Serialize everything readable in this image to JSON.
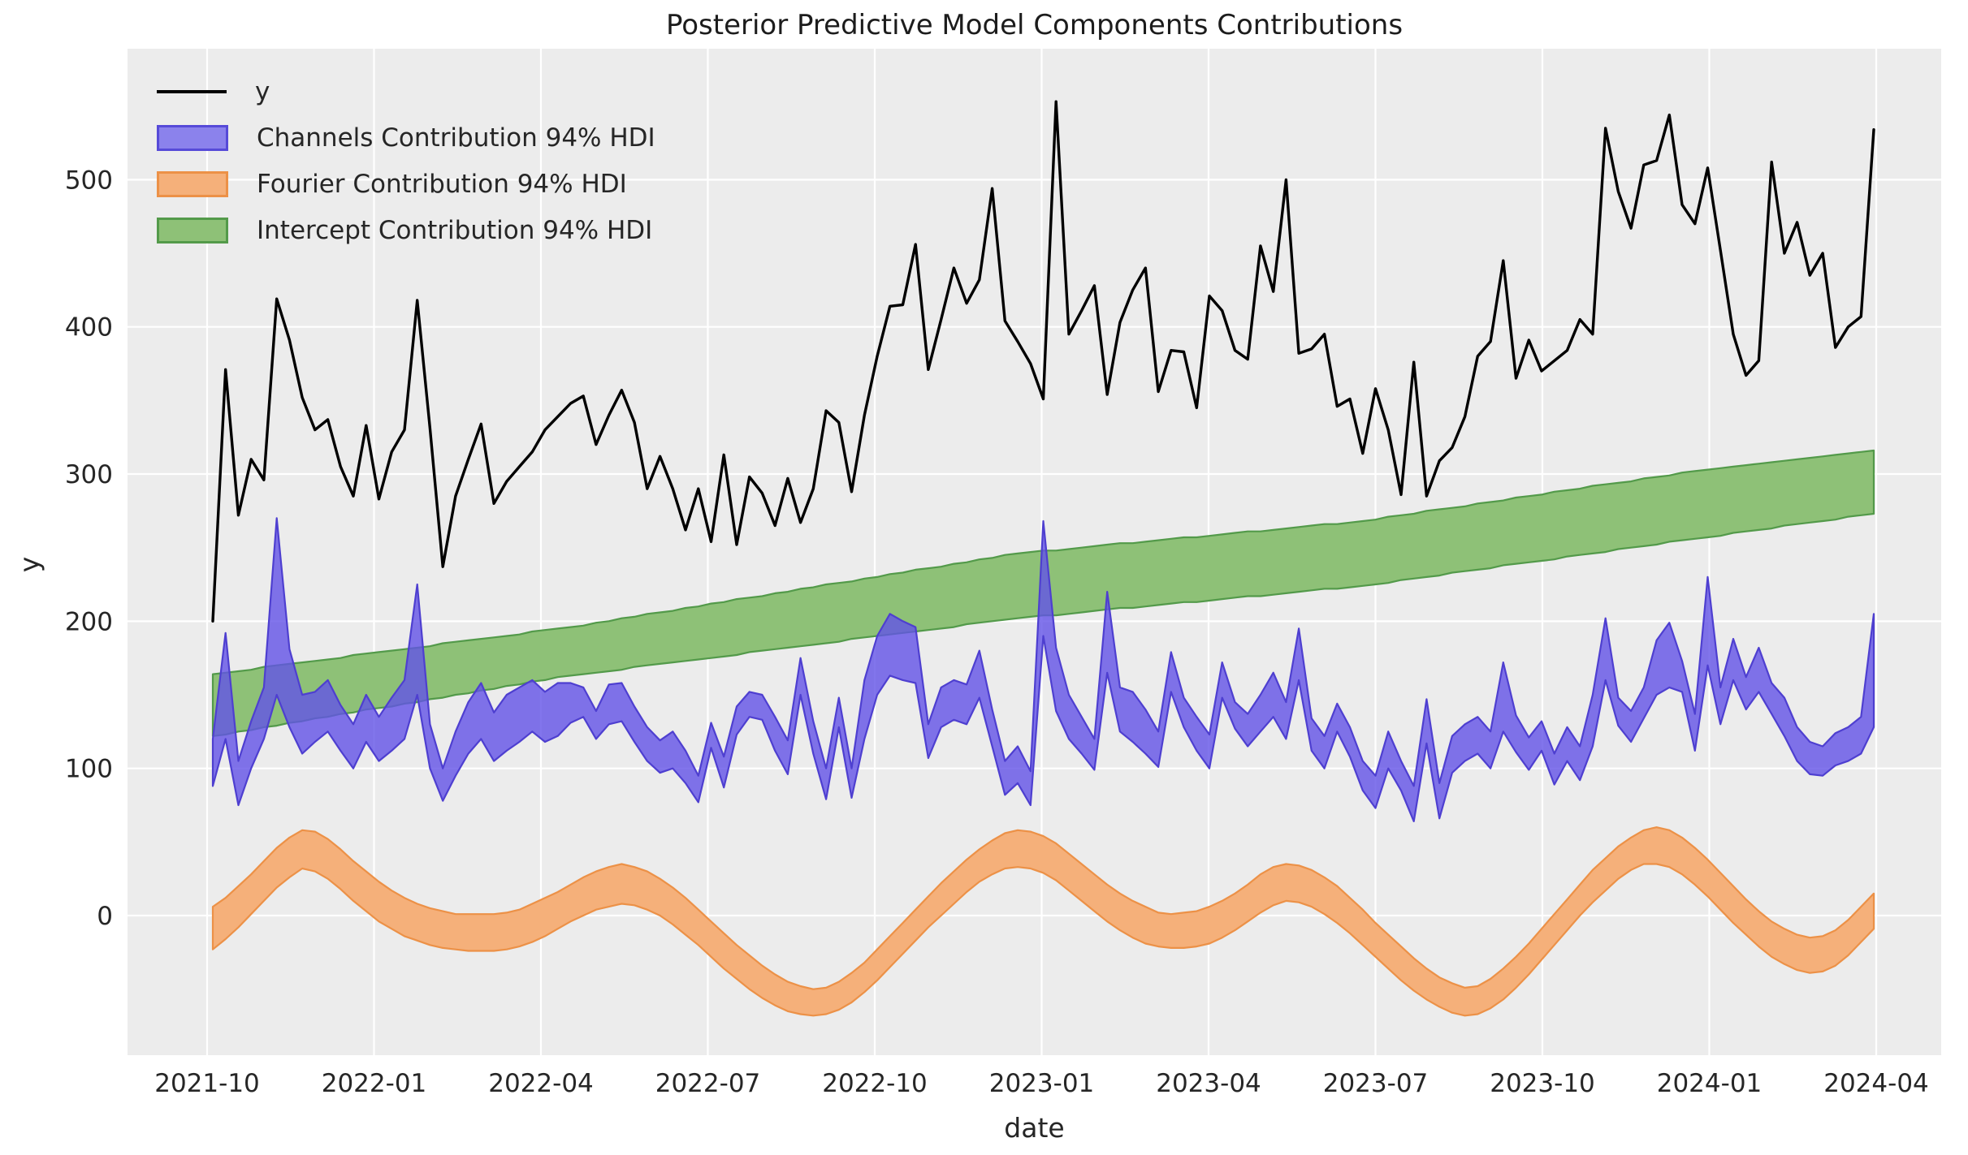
{
  "figure": {
    "title": "Posterior Predictive Model Components Contributions",
    "xlabel": "date",
    "ylabel": "y",
    "background": "#ffffff",
    "axes_background": "#ececec",
    "grid_color": "#ffffff",
    "text_color": "#262626"
  },
  "legend": {
    "position": "upper left",
    "items": [
      {
        "label": "y",
        "type": "line",
        "color": "#000000"
      },
      {
        "label": "Channels Contribution 94% HDI",
        "type": "patch",
        "fill": "#8b82ec",
        "edge": "#564ad8"
      },
      {
        "label": "Fourier Contribution 94% HDI",
        "type": "patch",
        "fill": "#f5b07a",
        "edge": "#ec9147"
      },
      {
        "label": "Intercept Contribution 94% HDI",
        "type": "patch",
        "fill": "#8ec177",
        "edge": "#539a4a"
      }
    ]
  },
  "chart_data": {
    "type": "line",
    "title": "Posterior Predictive Model Components Contributions",
    "xlabel": "date",
    "ylabel": "y",
    "grid": true,
    "legend_position": "upper left",
    "x_unit": "weekly observations, 2021-10-04 through 2024-04-01 (131 points)",
    "x_start_date": "2021-10-04",
    "x_end_date": "2024-04-01",
    "x_tick_labels": [
      "2021-10",
      "2022-01",
      "2022-04",
      "2022-07",
      "2022-10",
      "2023-01",
      "2023-04",
      "2023-07",
      "2023-10",
      "2024-01",
      "2024-04"
    ],
    "y_tick_labels": [
      0,
      100,
      200,
      300,
      400,
      500
    ],
    "ylim": [
      -95,
      589
    ],
    "series": [
      {
        "name": "y",
        "type": "line",
        "color": "#000000",
        "values": [
          200,
          371,
          272,
          310,
          296,
          419,
          391,
          352,
          330,
          337,
          305,
          285,
          333,
          283,
          315,
          330,
          418,
          331,
          237,
          285,
          310,
          334,
          280,
          295,
          305,
          315,
          330,
          339,
          348,
          353,
          320,
          340,
          357,
          335,
          290,
          312,
          290,
          262,
          290,
          254,
          313,
          252,
          298,
          287,
          265,
          297,
          267,
          290,
          343,
          335,
          288,
          340,
          380,
          414,
          415,
          456,
          371,
          405,
          440,
          416,
          432,
          494,
          404,
          390,
          375,
          351,
          553,
          395,
          411,
          428,
          354,
          403,
          425,
          440,
          356,
          384,
          383,
          345,
          421,
          411,
          384,
          378,
          455,
          424,
          500,
          382,
          385,
          395,
          346,
          351,
          314,
          358,
          330,
          286,
          376,
          285,
          309,
          318,
          339,
          380,
          390,
          445,
          365,
          391,
          370,
          377,
          384,
          405,
          395,
          535,
          492,
          467,
          510,
          513,
          544,
          483,
          470,
          508,
          452,
          395,
          367,
          377,
          512,
          450,
          471,
          435,
          450,
          386,
          400,
          407,
          534
        ]
      },
      {
        "name": "Channels Contribution 94% HDI",
        "type": "band",
        "fill": "rgba(99,82,231,0.80)",
        "edge": "#4e3fd0",
        "low": [
          88,
          120,
          75,
          100,
          120,
          150,
          128,
          110,
          118,
          125,
          112,
          100,
          118,
          105,
          112,
          120,
          150,
          100,
          78,
          95,
          110,
          120,
          105,
          112,
          118,
          125,
          118,
          122,
          131,
          135,
          120,
          130,
          132,
          118,
          105,
          97,
          100,
          90,
          77,
          114,
          87,
          123,
          135,
          133,
          112,
          96,
          150,
          110,
          79,
          128,
          80,
          120,
          150,
          163,
          160,
          158,
          107,
          128,
          133,
          130,
          148,
          115,
          82,
          90,
          75,
          190,
          139,
          120,
          110,
          99,
          165,
          125,
          118,
          110,
          101,
          152,
          128,
          112,
          100,
          148,
          127,
          115,
          125,
          135,
          120,
          160,
          112,
          100,
          125,
          108,
          85,
          73,
          100,
          85,
          64,
          117,
          66,
          97,
          105,
          110,
          100,
          125,
          111,
          99,
          112,
          89,
          105,
          92,
          115,
          160,
          129,
          118,
          134,
          150,
          155,
          152,
          112,
          170,
          130,
          160,
          140,
          152,
          137,
          122,
          105,
          96,
          95,
          102,
          105,
          110,
          128
        ],
        "high": [
          120,
          192,
          105,
          132,
          155,
          270,
          181,
          150,
          152,
          160,
          143,
          130,
          150,
          135,
          148,
          160,
          225,
          130,
          100,
          125,
          145,
          158,
          138,
          150,
          155,
          160,
          152,
          158,
          158,
          155,
          139,
          157,
          158,
          142,
          128,
          119,
          125,
          112,
          95,
          131,
          108,
          142,
          152,
          150,
          135,
          119,
          175,
          132,
          100,
          148,
          100,
          160,
          190,
          205,
          200,
          196,
          130,
          155,
          160,
          157,
          180,
          140,
          105,
          115,
          98,
          268,
          182,
          150,
          135,
          120,
          220,
          155,
          152,
          140,
          125,
          179,
          148,
          135,
          123,
          172,
          145,
          137,
          150,
          165,
          145,
          195,
          134,
          122,
          144,
          128,
          105,
          95,
          125,
          105,
          88,
          147,
          90,
          122,
          130,
          135,
          125,
          172,
          136,
          121,
          132,
          110,
          128,
          115,
          150,
          202,
          148,
          139,
          155,
          187,
          199,
          173,
          137,
          230,
          155,
          188,
          162,
          182,
          158,
          148,
          128,
          118,
          115,
          124,
          128,
          135,
          205
        ]
      },
      {
        "name": "Fourier Contribution 94% HDI",
        "type": "band",
        "fill": "#f5b07a",
        "edge": "#ec9147",
        "low": [
          -23,
          -16,
          -8,
          1,
          10,
          19,
          26,
          32,
          30,
          25,
          18,
          10,
          3,
          -4,
          -9,
          -14,
          -17,
          -20,
          -22,
          -23,
          -24,
          -24,
          -24,
          -23,
          -21,
          -18,
          -14,
          -9,
          -4,
          0,
          4,
          6,
          8,
          7,
          4,
          0,
          -6,
          -13,
          -20,
          -28,
          -36,
          -43,
          -50,
          -56,
          -61,
          -65,
          -67,
          -68,
          -67,
          -64,
          -59,
          -52,
          -44,
          -35,
          -26,
          -17,
          -8,
          0,
          8,
          16,
          23,
          28,
          32,
          33,
          32,
          29,
          24,
          17,
          10,
          3,
          -4,
          -10,
          -15,
          -19,
          -21,
          -22,
          -22,
          -21,
          -19,
          -15,
          -10,
          -4,
          2,
          7,
          10,
          9,
          6,
          1,
          -5,
          -12,
          -20,
          -28,
          -36,
          -44,
          -51,
          -57,
          -62,
          -66,
          -68,
          -67,
          -63,
          -57,
          -49,
          -40,
          -30,
          -20,
          -10,
          0,
          9,
          17,
          25,
          31,
          35,
          35,
          33,
          28,
          21,
          13,
          4,
          -5,
          -13,
          -21,
          -28,
          -33,
          -37,
          -39,
          -38,
          -34,
          -27,
          -18,
          -9
        ],
        "high": [
          6,
          12,
          20,
          28,
          37,
          46,
          53,
          58,
          57,
          52,
          45,
          37,
          30,
          23,
          17,
          12,
          8,
          5,
          3,
          1,
          1,
          1,
          1,
          2,
          4,
          8,
          12,
          16,
          21,
          26,
          30,
          33,
          35,
          33,
          30,
          25,
          19,
          12,
          4,
          -4,
          -12,
          -20,
          -27,
          -34,
          -40,
          -45,
          -48,
          -50,
          -49,
          -45,
          -39,
          -32,
          -23,
          -14,
          -5,
          4,
          13,
          22,
          30,
          38,
          45,
          51,
          56,
          58,
          57,
          54,
          49,
          42,
          35,
          28,
          21,
          15,
          10,
          6,
          2,
          1,
          2,
          3,
          6,
          10,
          15,
          21,
          28,
          33,
          35,
          34,
          31,
          26,
          20,
          12,
          4,
          -5,
          -13,
          -21,
          -29,
          -36,
          -42,
          -46,
          -49,
          -48,
          -43,
          -36,
          -28,
          -19,
          -9,
          1,
          11,
          21,
          31,
          39,
          47,
          53,
          58,
          60,
          58,
          53,
          46,
          38,
          29,
          20,
          11,
          3,
          -4,
          -9,
          -13,
          -15,
          -14,
          -10,
          -3,
          6,
          15
        ]
      },
      {
        "name": "Intercept Contribution 94% HDI",
        "type": "band",
        "fill": "#8ec177",
        "edge": "#539a4a",
        "low": [
          122,
          123,
          125,
          126,
          128,
          129,
          131,
          132,
          134,
          135,
          137,
          138,
          140,
          141,
          142,
          144,
          145,
          147,
          148,
          150,
          151,
          153,
          154,
          156,
          157,
          159,
          160,
          162,
          163,
          164,
          165,
          166,
          167,
          169,
          170,
          171,
          172,
          173,
          174,
          175,
          176,
          177,
          179,
          180,
          181,
          182,
          183,
          184,
          185,
          186,
          188,
          189,
          190,
          191,
          192,
          193,
          194,
          195,
          196,
          198,
          199,
          200,
          201,
          202,
          203,
          204,
          204,
          205,
          206,
          207,
          208,
          209,
          209,
          210,
          211,
          212,
          213,
          213,
          214,
          215,
          216,
          217,
          217,
          218,
          219,
          220,
          221,
          222,
          222,
          223,
          224,
          225,
          226,
          228,
          229,
          230,
          231,
          233,
          234,
          235,
          236,
          238,
          239,
          240,
          241,
          242,
          244,
          245,
          246,
          247,
          249,
          250,
          251,
          252,
          254,
          255,
          256,
          257,
          258,
          260,
          261,
          262,
          263,
          265,
          266,
          267,
          268,
          269,
          271,
          272,
          273
        ],
        "high": [
          164,
          165,
          166,
          167,
          169,
          170,
          171,
          172,
          173,
          174,
          175,
          177,
          178,
          179,
          180,
          181,
          182,
          183,
          185,
          186,
          187,
          188,
          189,
          190,
          191,
          193,
          194,
          195,
          196,
          197,
          199,
          200,
          202,
          203,
          205,
          206,
          207,
          209,
          210,
          212,
          213,
          215,
          216,
          217,
          219,
          220,
          222,
          223,
          225,
          226,
          227,
          229,
          230,
          232,
          233,
          235,
          236,
          237,
          239,
          240,
          242,
          243,
          245,
          246,
          247,
          248,
          248,
          249,
          250,
          251,
          252,
          253,
          253,
          254,
          255,
          256,
          257,
          257,
          258,
          259,
          260,
          261,
          261,
          262,
          263,
          264,
          265,
          266,
          266,
          267,
          268,
          269,
          271,
          272,
          273,
          275,
          276,
          277,
          278,
          280,
          281,
          282,
          284,
          285,
          286,
          288,
          289,
          290,
          292,
          293,
          294,
          295,
          297,
          298,
          299,
          301,
          302,
          303,
          304,
          305,
          306,
          307,
          308,
          309,
          310,
          311,
          312,
          313,
          314,
          315,
          316
        ]
      }
    ]
  }
}
